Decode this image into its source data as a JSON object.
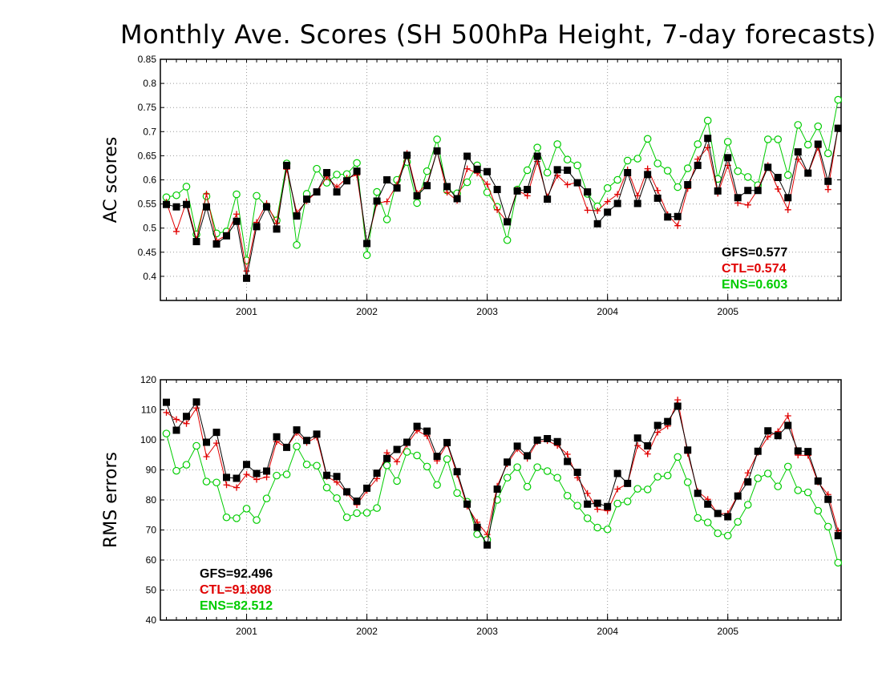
{
  "title": "Monthly Ave. Scores (SH 500hPa Height, 7-day forecasts)",
  "colors": {
    "GFS": "#000000",
    "CTL": "#e00000",
    "ENS": "#00cc00"
  },
  "chart_data": [
    {
      "type": "line",
      "id": "ac",
      "ylabel": "AC scores",
      "xlabel": "",
      "ylim": [
        0.35,
        0.85
      ],
      "yticks": [
        0.4,
        0.45,
        0.5,
        0.55,
        0.6,
        0.65,
        0.7,
        0.75,
        0.8,
        0.85
      ],
      "ytick_labels": [
        "0.4",
        "0.45",
        "0.5",
        "0.55",
        "0.6",
        "0.65",
        "0.7",
        "0.75",
        "0.8",
        "0.85"
      ],
      "x_axis": {
        "start": "2000-05",
        "end": "2005-11",
        "tick_labels": [
          "2001",
          "2002",
          "2003",
          "2004",
          "2005"
        ]
      },
      "grid": true,
      "series": [
        {
          "name": "GFS",
          "marker": "square",
          "values": [
            0.549,
            0.544,
            0.549,
            0.472,
            0.544,
            0.467,
            0.484,
            0.514,
            0.396,
            0.503,
            0.544,
            0.498,
            0.63,
            0.525,
            0.56,
            0.575,
            0.615,
            0.575,
            0.598,
            0.618,
            0.468,
            0.556,
            0.6,
            0.583,
            0.651,
            0.567,
            0.588,
            0.66,
            0.586,
            0.561,
            0.649,
            0.622,
            0.617,
            0.58,
            0.513,
            0.577,
            0.58,
            0.649,
            0.56,
            0.621,
            0.62,
            0.594,
            0.575,
            0.509,
            0.533,
            0.551,
            0.615,
            0.551,
            0.611,
            0.562,
            0.523,
            0.524,
            0.59,
            0.63,
            0.686,
            0.577,
            0.646,
            0.563,
            0.578,
            0.578,
            0.626,
            0.605,
            0.563,
            0.658,
            0.614,
            0.674,
            0.597,
            0.707
          ]
        },
        {
          "name": "CTL",
          "marker": "plus",
          "values": [
            0.554,
            0.493,
            0.555,
            0.476,
            0.571,
            0.474,
            0.485,
            0.529,
            0.411,
            0.512,
            0.551,
            0.51,
            0.622,
            0.532,
            0.556,
            0.575,
            0.606,
            0.585,
            0.604,
            0.61,
            0.468,
            0.552,
            0.555,
            0.59,
            0.655,
            0.572,
            0.591,
            0.66,
            0.574,
            0.557,
            0.623,
            0.614,
            0.591,
            0.538,
            0.513,
            0.579,
            0.567,
            0.638,
            0.565,
            0.609,
            0.59,
            0.595,
            0.537,
            0.536,
            0.555,
            0.57,
            0.621,
            0.567,
            0.623,
            0.578,
            0.528,
            0.505,
            0.582,
            0.643,
            0.667,
            0.572,
            0.63,
            0.552,
            0.548,
            0.58,
            0.63,
            0.581,
            0.538,
            0.643,
            0.613,
            0.667,
            0.58,
            0.708
          ]
        },
        {
          "name": "ENS",
          "marker": "circle",
          "values": [
            0.564,
            0.568,
            0.586,
            0.487,
            0.566,
            0.489,
            0.493,
            0.57,
            0.433,
            0.567,
            0.545,
            0.516,
            0.634,
            0.465,
            0.571,
            0.623,
            0.594,
            0.611,
            0.612,
            0.635,
            0.444,
            0.575,
            0.518,
            0.6,
            0.637,
            0.552,
            0.618,
            0.684,
            0.578,
            0.572,
            0.595,
            0.63,
            0.574,
            0.544,
            0.475,
            0.58,
            0.62,
            0.667,
            0.615,
            0.674,
            0.642,
            0.63,
            0.571,
            0.545,
            0.583,
            0.6,
            0.64,
            0.644,
            0.685,
            0.634,
            0.619,
            0.585,
            0.624,
            0.674,
            0.723,
            0.602,
            0.679,
            0.618,
            0.606,
            0.589,
            0.684,
            0.684,
            0.61,
            0.714,
            0.673,
            0.711,
            0.655,
            0.766
          ]
        }
      ],
      "stats": [
        {
          "name": "GFS",
          "text": "GFS=0.577"
        },
        {
          "name": "CTL",
          "text": "CTL=0.574"
        },
        {
          "name": "ENS",
          "text": "ENS=0.603"
        }
      ]
    },
    {
      "type": "line",
      "id": "rms",
      "ylabel": "RMS errors",
      "xlabel": "",
      "ylim": [
        40,
        120
      ],
      "yticks": [
        40,
        50,
        60,
        70,
        80,
        90,
        100,
        110,
        120
      ],
      "ytick_labels": [
        "40",
        "50",
        "60",
        "70",
        "80",
        "90",
        "100",
        "110",
        "120"
      ],
      "x_axis": {
        "start": "2000-05",
        "end": "2005-11",
        "tick_labels": [
          "2001",
          "2002",
          "2003",
          "2004",
          "2005"
        ]
      },
      "grid": true,
      "series": [
        {
          "name": "GFS",
          "marker": "square",
          "values": [
            112.5,
            103.2,
            107.8,
            112.6,
            99.2,
            102.5,
            87.5,
            87.2,
            91.8,
            88.8,
            89.6,
            101.0,
            97.5,
            103.3,
            99.8,
            101.9,
            88.2,
            87.8,
            82.7,
            79.6,
            83.9,
            88.9,
            93.8,
            96.8,
            99.2,
            104.5,
            102.9,
            94.5,
            99.1,
            89.4,
            78.6,
            70.9,
            65.0,
            83.6,
            92.6,
            97.9,
            94.7,
            99.9,
            100.4,
            99.4,
            92.8,
            89.2,
            78.6,
            78.9,
            77.8,
            88.8,
            85.5,
            100.6,
            98.0,
            104.8,
            106.1,
            111.2,
            96.6,
            82.2,
            78.6,
            75.5,
            74.4,
            81.3,
            86.0,
            96.2,
            103.0,
            101.4,
            104.8,
            96.3,
            96.1,
            86.3,
            80.2,
            68.1
          ]
        },
        {
          "name": "CTL",
          "marker": "plus",
          "values": [
            109.1,
            106.8,
            105.4,
            110.6,
            94.4,
            98.9,
            85.0,
            84.1,
            88.5,
            86.8,
            87.6,
            99.4,
            97.5,
            102.4,
            99.1,
            100.9,
            87.8,
            85.9,
            82.3,
            78.4,
            83.1,
            87.1,
            95.7,
            92.7,
            98.5,
            103.1,
            101.3,
            93.0,
            98.7,
            88.5,
            77.9,
            72.6,
            68.5,
            84.6,
            92.0,
            97.0,
            93.8,
            99.4,
            99.7,
            98.1,
            95.2,
            87.4,
            82.2,
            76.9,
            76.4,
            83.6,
            85.4,
            98.1,
            95.3,
            102.5,
            104.6,
            113.3,
            95.5,
            82.8,
            80.2,
            75.4,
            75.5,
            81.5,
            89.0,
            95.8,
            101.0,
            102.8,
            108.0,
            94.9,
            94.8,
            85.9,
            81.8,
            69.7
          ]
        },
        {
          "name": "ENS",
          "marker": "circle",
          "values": [
            102.1,
            89.7,
            91.7,
            98.0,
            86.1,
            85.8,
            74.2,
            73.9,
            77.1,
            73.3,
            80.5,
            88.1,
            88.5,
            97.8,
            91.8,
            91.4,
            84.1,
            80.6,
            74.2,
            75.6,
            75.7,
            77.3,
            91.5,
            86.3,
            96.0,
            94.8,
            91.1,
            85.0,
            93.6,
            82.3,
            79.4,
            68.6,
            66.8,
            80.0,
            87.4,
            90.9,
            84.4,
            90.9,
            89.6,
            87.4,
            81.4,
            78.1,
            73.9,
            70.8,
            70.2,
            78.8,
            79.5,
            83.7,
            83.5,
            87.7,
            88.1,
            94.3,
            85.9,
            74.0,
            72.5,
            68.9,
            68.1,
            72.7,
            78.4,
            87.2,
            88.8,
            84.5,
            91.1,
            83.2,
            82.5,
            76.4,
            71.1,
            59.1
          ]
        }
      ],
      "stats": [
        {
          "name": "GFS",
          "text": "GFS=92.496"
        },
        {
          "name": "CTL",
          "text": "CTL=91.808"
        },
        {
          "name": "ENS",
          "text": "ENS=82.512"
        }
      ]
    }
  ]
}
